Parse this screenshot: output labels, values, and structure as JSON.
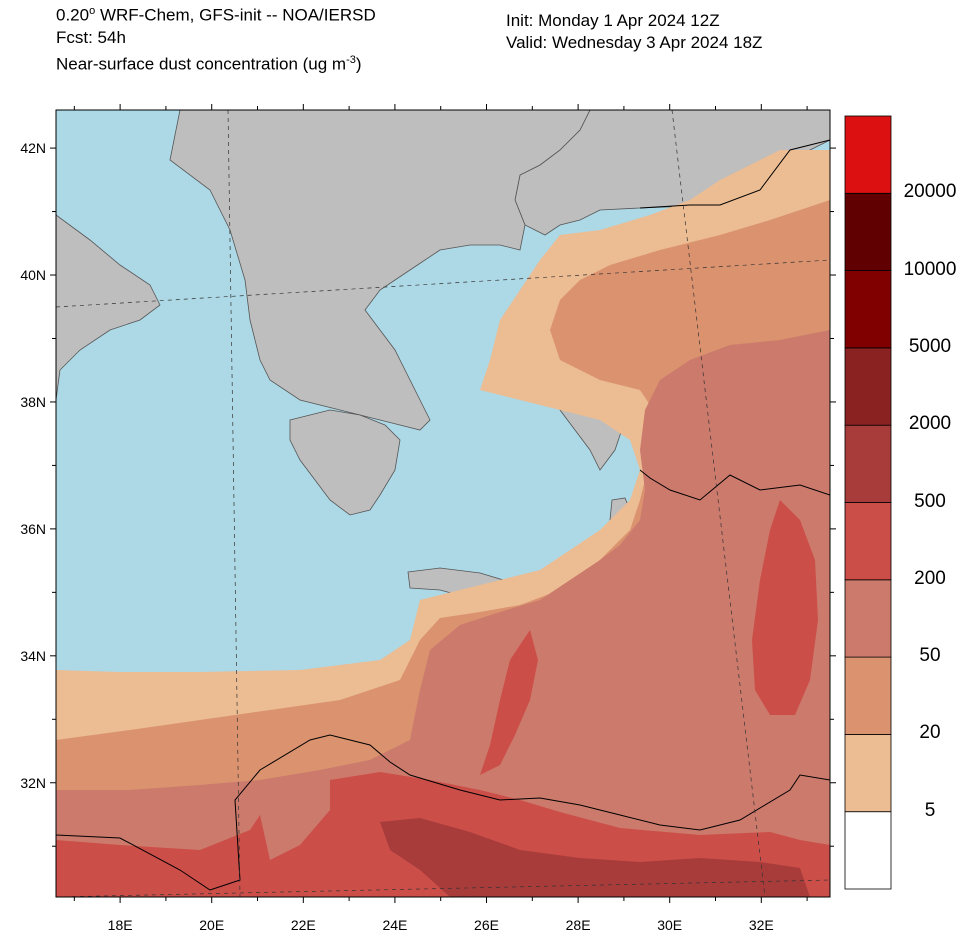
{
  "header": {
    "line1_pre": "0.20",
    "line1_sup": "o",
    "line1_post": " WRF-Chem, GFS-init -- NOA/IERSD",
    "line2": "Fcst: 54h",
    "line3_pre": "Near-surface dust concentration (ug m",
    "line3_sup": "-3",
    "line3_post": ")",
    "init": "Init: Monday 1 Apr 2024  12Z",
    "valid": "Valid: Wednesday 3 Apr 2024  18Z"
  },
  "map": {
    "lon_range": [
      16.6,
      33.5
    ],
    "lat_range": [
      30.2,
      42.6
    ],
    "lat_ticks": [
      "42N",
      "40N",
      "38N",
      "36N",
      "34N",
      "32N"
    ],
    "lat_tick_values": [
      42,
      40,
      38,
      36,
      34,
      32
    ],
    "lon_ticks": [
      "18E",
      "20E",
      "22E",
      "24E",
      "26E",
      "28E",
      "30E",
      "32E"
    ],
    "lon_tick_values": [
      18,
      20,
      22,
      24,
      26,
      28,
      30,
      32
    ],
    "sea_color": "#add8e6",
    "land_color": "#bebebe"
  },
  "colorbar": {
    "labels": [
      "20000",
      "10000",
      "5000",
      "2000",
      "500",
      "200",
      "50",
      "20",
      "5"
    ],
    "colors_bottom_to_top": [
      "#ffffff",
      "#ecbc93",
      "#da926f",
      "#cb7a6c",
      "#cc4e49",
      "#a83c3b",
      "#8b2222",
      "#800000",
      "#600000",
      "#dc1010"
    ]
  }
}
